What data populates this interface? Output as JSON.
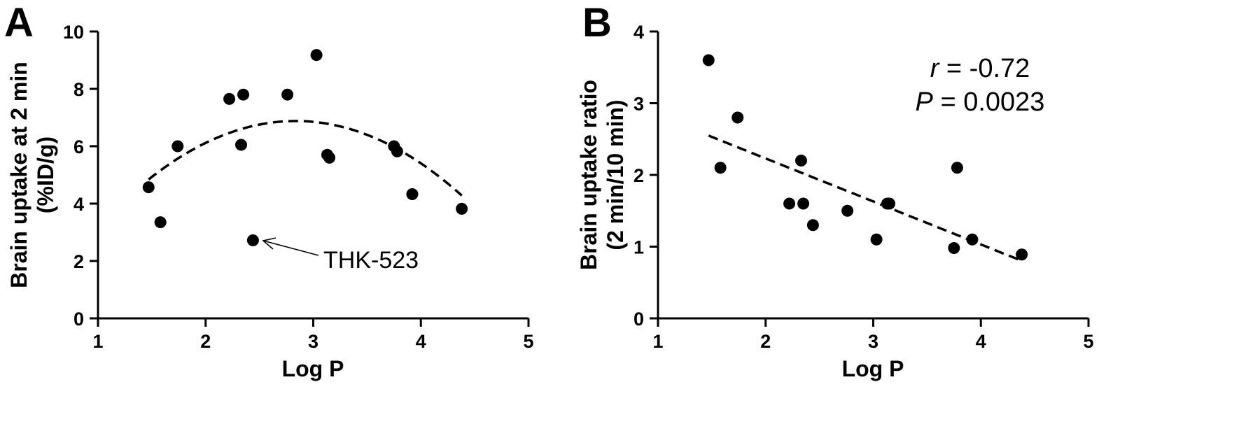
{
  "chart_data": [
    {
      "type": "scatter",
      "panel_label": "A",
      "xlabel": "Log P",
      "ylabel": [
        "Brain uptake at 2 min",
        "(%ID/g)"
      ],
      "xlim": [
        1,
        5
      ],
      "ylim": [
        0,
        10
      ],
      "xticks": [
        "1",
        "2",
        "3",
        "4",
        "5"
      ],
      "yticks": [
        "0",
        "2",
        "4",
        "6",
        "8",
        "10"
      ],
      "grid": false,
      "points": [
        {
          "x": 1.47,
          "y": 4.57
        },
        {
          "x": 1.58,
          "y": 3.35
        },
        {
          "x": 1.74,
          "y": 6.0
        },
        {
          "x": 2.22,
          "y": 7.65
        },
        {
          "x": 2.33,
          "y": 6.05
        },
        {
          "x": 2.35,
          "y": 7.8
        },
        {
          "x": 2.44,
          "y": 2.72
        },
        {
          "x": 2.76,
          "y": 7.8
        },
        {
          "x": 3.03,
          "y": 9.18
        },
        {
          "x": 3.13,
          "y": 5.7
        },
        {
          "x": 3.15,
          "y": 5.6
        },
        {
          "x": 3.75,
          "y": 6.0
        },
        {
          "x": 3.78,
          "y": 5.82
        },
        {
          "x": 3.92,
          "y": 4.33
        },
        {
          "x": 4.38,
          "y": 3.82
        }
      ],
      "fit": {
        "kind": "quadratic",
        "style": "dashed",
        "x_range": [
          1.47,
          4.38
        ],
        "coef": [
          -1.8966,
          6.1866,
          -1.0904
        ]
      },
      "annotation": {
        "text": "THK-523",
        "point_index": 6
      }
    },
    {
      "type": "scatter",
      "panel_label": "B",
      "xlabel": "Log P",
      "ylabel": [
        "Brain uptake ratio",
        "(2 min/10 min)"
      ],
      "xlim": [
        1,
        5
      ],
      "ylim": [
        0,
        4
      ],
      "xticks": [
        "1",
        "2",
        "3",
        "4",
        "5"
      ],
      "yticks": [
        "0",
        "1",
        "2",
        "3",
        "4"
      ],
      "grid": false,
      "points": [
        {
          "x": 1.47,
          "y": 3.6
        },
        {
          "x": 1.58,
          "y": 2.1
        },
        {
          "x": 1.74,
          "y": 2.8
        },
        {
          "x": 2.22,
          "y": 1.6
        },
        {
          "x": 2.33,
          "y": 2.2
        },
        {
          "x": 2.35,
          "y": 1.6
        },
        {
          "x": 2.44,
          "y": 1.3
        },
        {
          "x": 2.76,
          "y": 1.5
        },
        {
          "x": 3.03,
          "y": 1.1
        },
        {
          "x": 3.13,
          "y": 1.6
        },
        {
          "x": 3.15,
          "y": 1.6
        },
        {
          "x": 3.75,
          "y": 0.98
        },
        {
          "x": 3.78,
          "y": 2.1
        },
        {
          "x": 3.92,
          "y": 1.1
        },
        {
          "x": 4.38,
          "y": 0.89
        }
      ],
      "fit": {
        "kind": "linear",
        "style": "dashed",
        "x_range": [
          1.47,
          4.38
        ],
        "coef": [
          3.43,
          -0.6
        ]
      },
      "stats": {
        "r_symbol": "r",
        "r_value": " = -0.72",
        "p_symbol": "P",
        "p_value": " = 0.0023"
      }
    }
  ]
}
